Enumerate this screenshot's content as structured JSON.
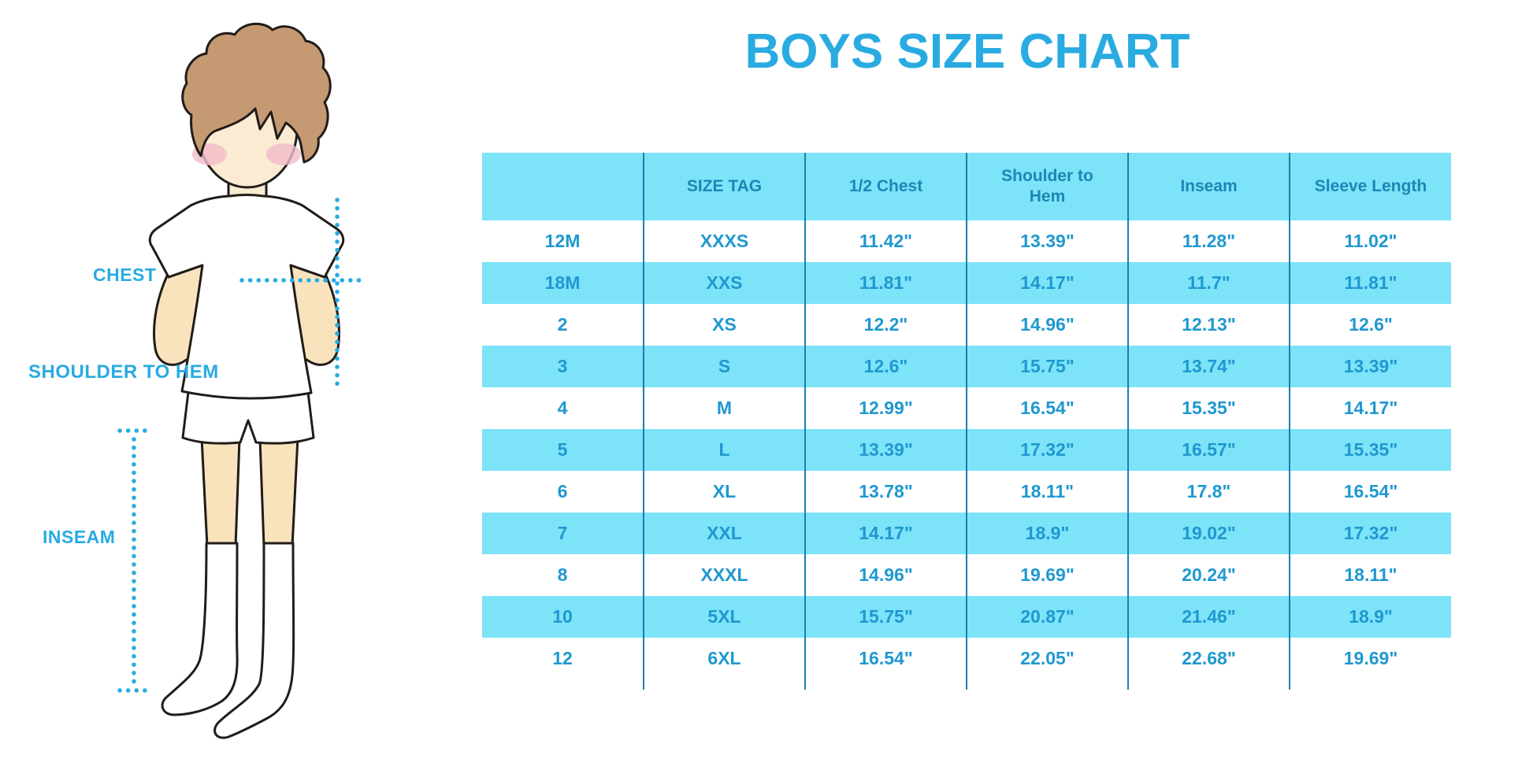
{
  "title": "BOYS SIZE CHART",
  "diagram": {
    "labels": {
      "chest": "CHEST",
      "shoulder_to_hem": "SHOULDER TO HEM",
      "inseam": "INSEAM"
    }
  },
  "colors": {
    "accent_blue": "#29ABE2",
    "table_band_cyan": "#7DE3F8",
    "header_text": "#1C86B6",
    "cell_text": "#1F98D0",
    "grid_line": "#1B7FAE"
  },
  "chart_data": {
    "type": "table",
    "title": "BOYS SIZE CHART",
    "units": "inches",
    "banded_rows": true,
    "band_color": "#7DE3F8",
    "columns": [
      "",
      "SIZE TAG",
      "1/2 Chest",
      "Shoulder to Hem",
      "Inseam",
      "Sleeve Length"
    ],
    "rows": [
      [
        "12M",
        "XXXS",
        "11.42\"",
        "13.39\"",
        "11.28\"",
        "11.02\""
      ],
      [
        "18M",
        "XXS",
        "11.81\"",
        "14.17\"",
        "11.7\"",
        "11.81\""
      ],
      [
        "2",
        "XS",
        "12.2\"",
        "14.96\"",
        "12.13\"",
        "12.6\""
      ],
      [
        "3",
        "S",
        "12.6\"",
        "15.75\"",
        "13.74\"",
        "13.39\""
      ],
      [
        "4",
        "M",
        "12.99\"",
        "16.54\"",
        "15.35\"",
        "14.17\""
      ],
      [
        "5",
        "L",
        "13.39\"",
        "17.32\"",
        "16.57\"",
        "15.35\""
      ],
      [
        "6",
        "XL",
        "13.78\"",
        "18.11\"",
        "17.8\"",
        "16.54\""
      ],
      [
        "7",
        "XXL",
        "14.17\"",
        "18.9\"",
        "19.02\"",
        "17.32\""
      ],
      [
        "8",
        "XXXL",
        "14.96\"",
        "19.69\"",
        "20.24\"",
        "18.11\""
      ],
      [
        "10",
        "5XL",
        "15.75\"",
        "20.87\"",
        "21.46\"",
        "18.9\""
      ],
      [
        "12",
        "6XL",
        "16.54\"",
        "22.05\"",
        "22.68\"",
        "19.69\""
      ]
    ]
  }
}
